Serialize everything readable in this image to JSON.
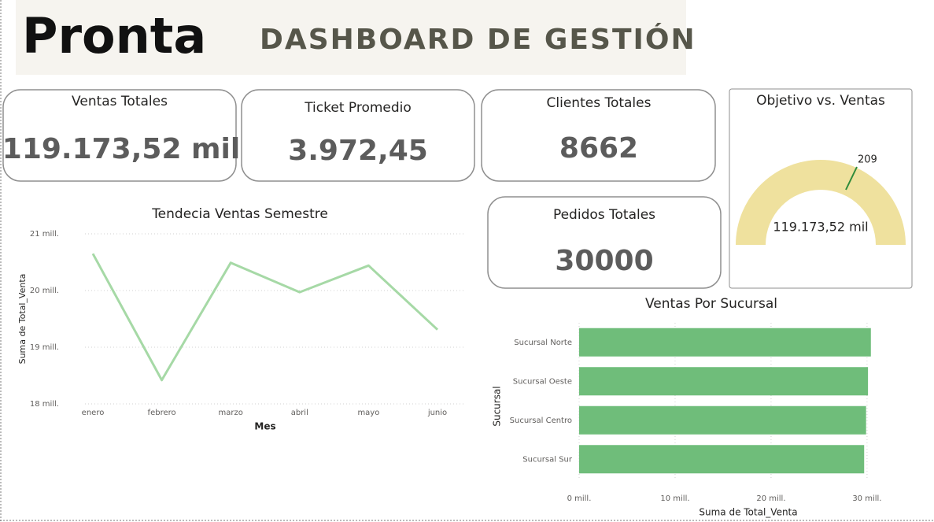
{
  "header": {
    "brand": "Pronta",
    "title": "DASHBOARD DE GESTIÓN"
  },
  "cards": [
    {
      "title": "Ventas Totales",
      "value": "119.173,52 mil"
    },
    {
      "title": "Ticket Promedio",
      "value": "3.972,45"
    },
    {
      "title": "Clientes Totales",
      "value": "8662"
    },
    {
      "title": "Pedidos Totales",
      "value": "30000"
    }
  ],
  "gauge": {
    "title": "Objetivo vs. Ventas",
    "value_label": "119.173,52 mil",
    "target_label": "209"
  },
  "chart_data": [
    {
      "type": "line",
      "title": "Tendecia Ventas Semestre",
      "x_label": "Mes",
      "y_label": "Suma de Total_Venta",
      "categories": [
        "enero",
        "febrero",
        "marzo",
        "abril",
        "mayo",
        "junio"
      ],
      "values": [
        20.65,
        18.42,
        20.49,
        19.97,
        20.44,
        19.31
      ],
      "color": "#a6d9a6",
      "ylim": [
        18,
        21
      ],
      "yticks": [
        {
          "value": 18,
          "label": "18 mill."
        },
        {
          "value": 19,
          "label": "19 mill."
        },
        {
          "value": 20,
          "label": "20 mill."
        },
        {
          "value": 21,
          "label": "21 mill."
        }
      ],
      "grid": true
    },
    {
      "type": "barh",
      "title": "Ventas Por Sucursal",
      "x_label": "Suma de Total_Venta",
      "y_label": "Sucursal",
      "categories": [
        "Sucursal Norte",
        "Sucursal Oeste",
        "Sucursal Centro",
        "Sucursal Sur"
      ],
      "values": [
        30.4,
        30.1,
        29.9,
        29.7
      ],
      "color": "#6fbd7a",
      "xlim": [
        0,
        30.5
      ],
      "xticks": [
        {
          "value": 0,
          "label": "0 mill."
        },
        {
          "value": 10,
          "label": "10 mill."
        },
        {
          "value": 20,
          "label": "20 mill."
        },
        {
          "value": 30,
          "label": "30 mill."
        }
      ],
      "grid": true
    }
  ]
}
